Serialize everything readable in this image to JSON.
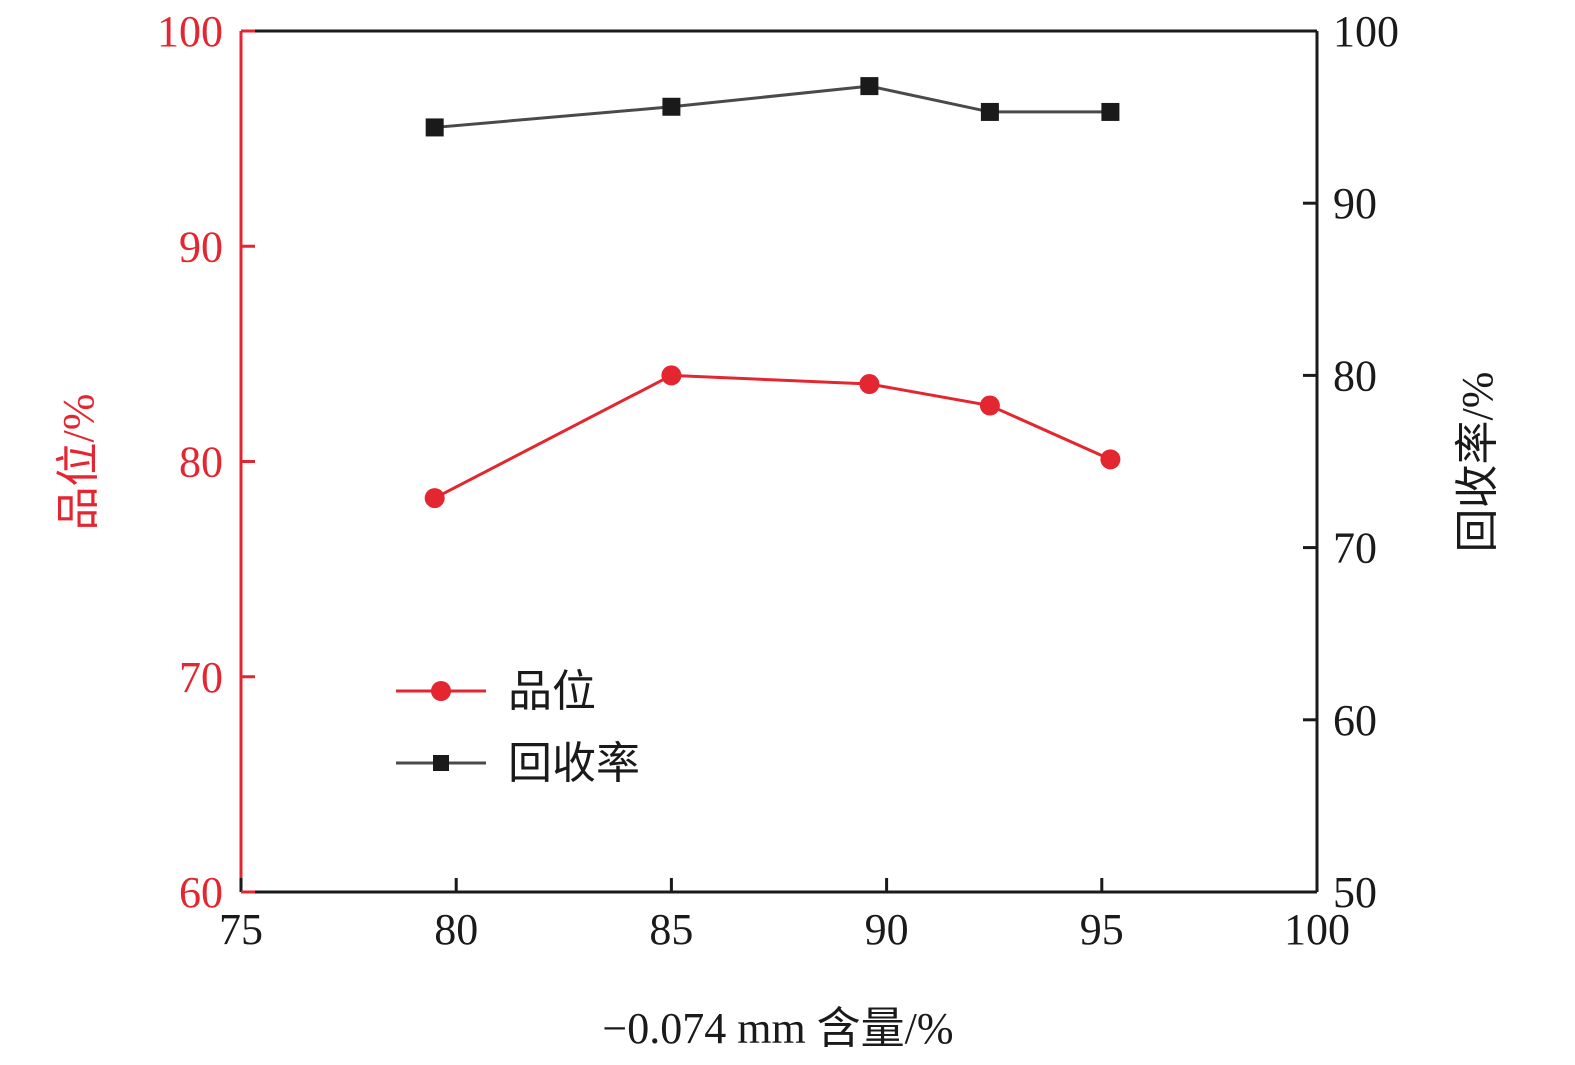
{
  "chart_data": {
    "type": "line",
    "xlabel": "−0.074 mm 含量/%",
    "ylabel_left": "品位/%",
    "ylabel_right": "回收率/%",
    "xlim": [
      75,
      100
    ],
    "ylim_left": [
      60,
      100
    ],
    "ylim_right": [
      50,
      100
    ],
    "x_ticks": [
      "75",
      "80",
      "85",
      "90",
      "95",
      "100"
    ],
    "y_left_ticks": [
      "60",
      "70",
      "80",
      "90",
      "100"
    ],
    "y_right_ticks": [
      "50",
      "60",
      "70",
      "80",
      "90",
      "100"
    ],
    "grid": false,
    "legend_placement": "lower-left",
    "series": [
      {
        "name": "品位",
        "axis": "left",
        "marker": "circle",
        "color": "#e3262f",
        "x": [
          79.5,
          85.0,
          89.6,
          92.4,
          95.2
        ],
        "y": [
          78.3,
          84.0,
          83.6,
          82.6,
          80.1
        ]
      },
      {
        "name": "回收率",
        "axis": "right",
        "marker": "square",
        "color": "#1a1a1a",
        "x": [
          79.5,
          85.0,
          89.6,
          92.4,
          95.2
        ],
        "y": [
          94.4,
          95.6,
          96.8,
          95.3,
          95.3
        ]
      }
    ],
    "colors": {
      "left_axis": "#e3262f",
      "right_axis": "#1a1a1a",
      "line_gray": "#4a4a4a"
    }
  }
}
